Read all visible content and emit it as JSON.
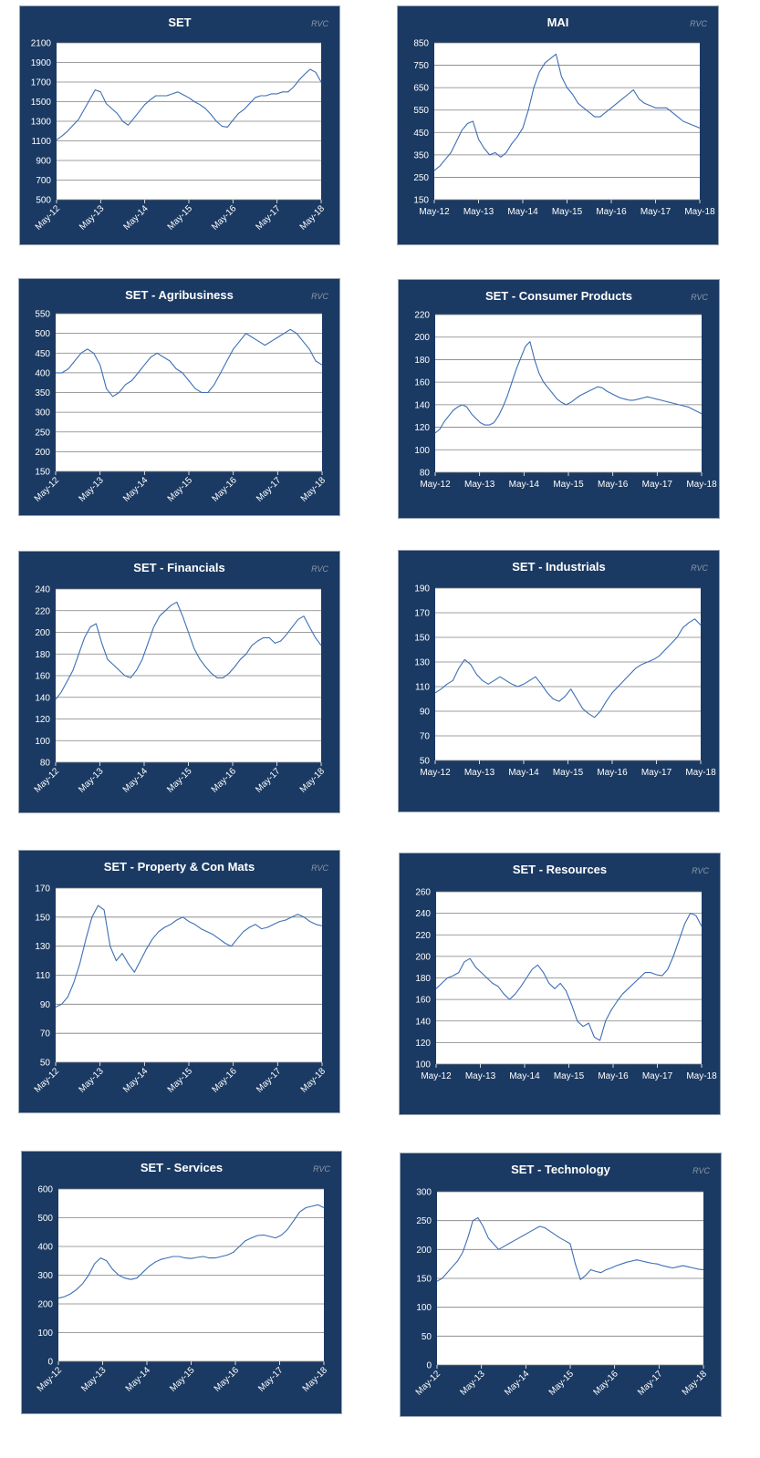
{
  "brand": "RVC",
  "colors": {
    "panel_bg": "#1b3a63",
    "plot_bg": "#ffffff",
    "grid": "#7f7f7f",
    "line": "#3c6fb5",
    "text": "#ffffff"
  },
  "chart_data": [
    {
      "type": "line",
      "title": "SET",
      "brand": "RVC",
      "x_ticks": [
        "May-12",
        "May-13",
        "May-14",
        "May-15",
        "May-16",
        "May-17",
        "May-18"
      ],
      "y_ticks": [
        "500",
        "700",
        "900",
        "1100",
        "1300",
        "1500",
        "1700",
        "1900",
        "2100"
      ],
      "ylim": [
        500,
        2100
      ],
      "x_label_rotation": "rotated",
      "series": [
        {
          "values": [
            1110,
            1150,
            1200,
            1260,
            1320,
            1420,
            1520,
            1620,
            1600,
            1480,
            1430,
            1380,
            1300,
            1260,
            1330,
            1400,
            1470,
            1520,
            1560,
            1560,
            1560,
            1580,
            1600,
            1570,
            1540,
            1500,
            1470,
            1430,
            1370,
            1300,
            1250,
            1240,
            1310,
            1380,
            1420,
            1480,
            1540,
            1560,
            1560,
            1580,
            1580,
            1600,
            1600,
            1650,
            1720,
            1780,
            1830,
            1800,
            1700
          ]
        }
      ]
    },
    {
      "type": "line",
      "title": "MAI",
      "brand": "RVC",
      "x_ticks": [
        "May-12",
        "May-13",
        "May-14",
        "May-15",
        "May-16",
        "May-17",
        "May-18"
      ],
      "y_ticks": [
        "150",
        "250",
        "350",
        "450",
        "550",
        "650",
        "750",
        "850"
      ],
      "ylim": [
        150,
        850
      ],
      "x_label_rotation": "none",
      "series": [
        {
          "values": [
            280,
            300,
            330,
            360,
            410,
            460,
            490,
            500,
            420,
            380,
            350,
            360,
            340,
            360,
            400,
            430,
            470,
            550,
            650,
            720,
            760,
            780,
            800,
            700,
            650,
            620,
            580,
            560,
            540,
            520,
            520,
            540,
            560,
            580,
            600,
            620,
            640,
            600,
            580,
            570,
            560,
            560,
            560,
            540,
            520,
            500,
            490,
            480,
            470
          ]
        }
      ]
    },
    {
      "type": "line",
      "title": "SET - Agribusiness",
      "brand": "RVC",
      "x_ticks": [
        "May-12",
        "May-13",
        "May-14",
        "May-15",
        "May-16",
        "May-17",
        "May-18"
      ],
      "y_ticks": [
        "150",
        "200",
        "250",
        "300",
        "350",
        "400",
        "450",
        "500",
        "550"
      ],
      "ylim": [
        150,
        550
      ],
      "x_label_rotation": "rotated",
      "series": [
        {
          "values": [
            400,
            400,
            410,
            430,
            450,
            460,
            450,
            420,
            360,
            340,
            350,
            370,
            380,
            400,
            420,
            440,
            450,
            440,
            430,
            410,
            400,
            380,
            360,
            350,
            350,
            370,
            400,
            430,
            460,
            480,
            500,
            490,
            480,
            470,
            480,
            490,
            500,
            510,
            500,
            480,
            460,
            430,
            420
          ]
        }
      ]
    },
    {
      "type": "line",
      "title": "SET - Consumer Products",
      "brand": "RVC",
      "x_ticks": [
        "May-12",
        "May-13",
        "May-14",
        "May-15",
        "May-16",
        "May-17",
        "May-18"
      ],
      "y_ticks": [
        "80",
        "100",
        "120",
        "140",
        "160",
        "180",
        "200",
        "220"
      ],
      "ylim": [
        80,
        220
      ],
      "x_label_rotation": "none",
      "series": [
        {
          "values": [
            115,
            118,
            125,
            130,
            135,
            138,
            140,
            138,
            132,
            128,
            124,
            122,
            122,
            124,
            130,
            138,
            148,
            160,
            172,
            182,
            192,
            196,
            180,
            168,
            160,
            155,
            150,
            145,
            142,
            140,
            142,
            145,
            148,
            150,
            152,
            154,
            156,
            155,
            152,
            150,
            148,
            146,
            145,
            144,
            144,
            145,
            146,
            147,
            146,
            145,
            144,
            143,
            142,
            141,
            140,
            139,
            138,
            136,
            134,
            132
          ]
        }
      ]
    },
    {
      "type": "line",
      "title": "SET - Financials",
      "brand": "RVC",
      "x_ticks": [
        "May-12",
        "May-13",
        "May-14",
        "May-15",
        "May-16",
        "May-17",
        "May-18"
      ],
      "y_ticks": [
        "80",
        "100",
        "120",
        "140",
        "160",
        "180",
        "200",
        "220",
        "240"
      ],
      "ylim": [
        80,
        240
      ],
      "x_label_rotation": "rotated",
      "series": [
        {
          "values": [
            138,
            145,
            155,
            165,
            180,
            195,
            205,
            208,
            190,
            175,
            170,
            165,
            160,
            158,
            165,
            175,
            190,
            205,
            215,
            220,
            225,
            228,
            215,
            200,
            185,
            175,
            168,
            162,
            158,
            158,
            162,
            168,
            175,
            180,
            188,
            192,
            195,
            195,
            190,
            192,
            198,
            205,
            212,
            215,
            205,
            195,
            188
          ]
        }
      ]
    },
    {
      "type": "line",
      "title": "SET - Industrials",
      "brand": "RVC",
      "x_ticks": [
        "May-12",
        "May-13",
        "May-14",
        "May-15",
        "May-16",
        "May-17",
        "May-18"
      ],
      "y_ticks": [
        "50",
        "70",
        "90",
        "110",
        "130",
        "150",
        "170",
        "190"
      ],
      "ylim": [
        50,
        190
      ],
      "x_label_rotation": "none",
      "series": [
        {
          "values": [
            105,
            108,
            112,
            115,
            125,
            132,
            128,
            120,
            115,
            112,
            115,
            118,
            115,
            112,
            110,
            112,
            115,
            118,
            112,
            105,
            100,
            98,
            102,
            108,
            100,
            92,
            88,
            85,
            90,
            98,
            105,
            110,
            115,
            120,
            125,
            128,
            130,
            132,
            135,
            140,
            145,
            150,
            158,
            162,
            165,
            160
          ]
        }
      ]
    },
    {
      "type": "line",
      "title": "SET - Property & Con Mats",
      "brand": "RVC",
      "x_ticks": [
        "May-12",
        "May-13",
        "May-14",
        "May-15",
        "May-16",
        "May-17",
        "May-18"
      ],
      "y_ticks": [
        "50",
        "70",
        "90",
        "110",
        "130",
        "150",
        "170"
      ],
      "ylim": [
        50,
        170
      ],
      "x_label_rotation": "rotated",
      "series": [
        {
          "values": [
            88,
            90,
            95,
            105,
            118,
            135,
            150,
            158,
            155,
            130,
            120,
            125,
            118,
            112,
            120,
            128,
            135,
            140,
            143,
            145,
            148,
            150,
            147,
            145,
            142,
            140,
            138,
            135,
            132,
            130,
            135,
            140,
            143,
            145,
            142,
            143,
            145,
            147,
            148,
            150,
            152,
            150,
            147,
            145,
            144
          ]
        }
      ]
    },
    {
      "type": "line",
      "title": "SET - Resources",
      "brand": "RVC",
      "x_ticks": [
        "May-12",
        "May-13",
        "May-14",
        "May-15",
        "May-16",
        "May-17",
        "May-18"
      ],
      "y_ticks": [
        "100",
        "120",
        "140",
        "160",
        "180",
        "200",
        "220",
        "240",
        "260"
      ],
      "ylim": [
        100,
        260
      ],
      "x_label_rotation": "none",
      "series": [
        {
          "values": [
            170,
            175,
            180,
            182,
            185,
            195,
            198,
            190,
            185,
            180,
            175,
            172,
            165,
            160,
            165,
            172,
            180,
            188,
            192,
            185,
            175,
            170,
            175,
            168,
            155,
            140,
            135,
            138,
            125,
            122,
            140,
            150,
            158,
            165,
            170,
            175,
            180,
            185,
            185,
            183,
            182,
            188,
            200,
            215,
            230,
            240,
            238,
            228
          ]
        }
      ]
    },
    {
      "type": "line",
      "title": "SET - Services",
      "brand": "RVC",
      "x_ticks": [
        "May-12",
        "May-13",
        "May-14",
        "May-15",
        "May-16",
        "May-17",
        "May-18"
      ],
      "y_ticks": [
        "0",
        "100",
        "200",
        "300",
        "400",
        "500",
        "600"
      ],
      "ylim": [
        0,
        600
      ],
      "x_label_rotation": "rotated",
      "series": [
        {
          "values": [
            220,
            225,
            235,
            250,
            270,
            300,
            340,
            360,
            350,
            320,
            300,
            290,
            285,
            290,
            310,
            330,
            345,
            355,
            360,
            365,
            365,
            360,
            358,
            362,
            365,
            360,
            360,
            365,
            370,
            380,
            400,
            420,
            430,
            438,
            440,
            435,
            430,
            440,
            460,
            490,
            520,
            535,
            540,
            545,
            535
          ]
        }
      ]
    },
    {
      "type": "line",
      "title": "SET - Technology",
      "brand": "RVC",
      "x_ticks": [
        "May-12",
        "May-13",
        "May-14",
        "May-15",
        "May-16",
        "May-17",
        "May-18"
      ],
      "y_ticks": [
        "0",
        "50",
        "100",
        "150",
        "200",
        "250",
        "300"
      ],
      "ylim": [
        0,
        300
      ],
      "x_label_rotation": "rotated",
      "series": [
        {
          "values": [
            145,
            150,
            160,
            170,
            180,
            195,
            220,
            250,
            255,
            240,
            220,
            210,
            200,
            205,
            210,
            215,
            220,
            225,
            230,
            235,
            240,
            238,
            232,
            226,
            220,
            215,
            210,
            175,
            148,
            155,
            165,
            162,
            160,
            165,
            168,
            172,
            175,
            178,
            180,
            182,
            180,
            178,
            176,
            175,
            172,
            170,
            168,
            170,
            172,
            170,
            168,
            166,
            165
          ]
        }
      ]
    }
  ]
}
